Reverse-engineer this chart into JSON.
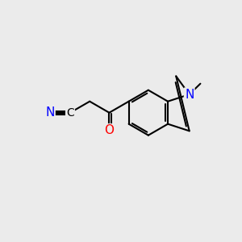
{
  "background_color": "#ebebeb",
  "bond_color": "#000000",
  "bond_width": 1.5,
  "atom_colors": {
    "N": "#0000ff",
    "O": "#ff0000"
  },
  "font_size": 11,
  "font_size_small": 10
}
